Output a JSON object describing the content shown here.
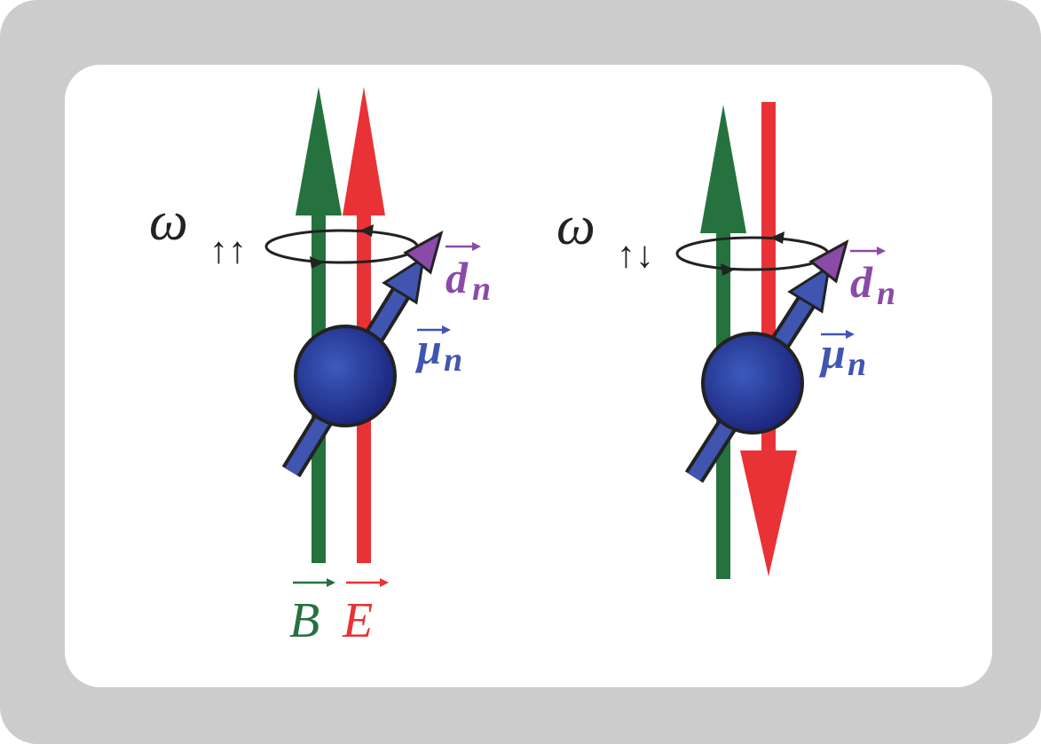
{
  "panels": [
    {
      "omega": "ω",
      "omega_subscript": "↑↑",
      "edm": "d",
      "edm_subscript": "n",
      "moment": "μ",
      "moment_subscript": "n",
      "field_labels": [
        "B",
        "E"
      ]
    },
    {
      "omega": "ω",
      "omega_subscript": "↑↓",
      "edm": "d",
      "edm_subscript": "n",
      "moment": "μ",
      "moment_subscript": "n"
    }
  ]
}
